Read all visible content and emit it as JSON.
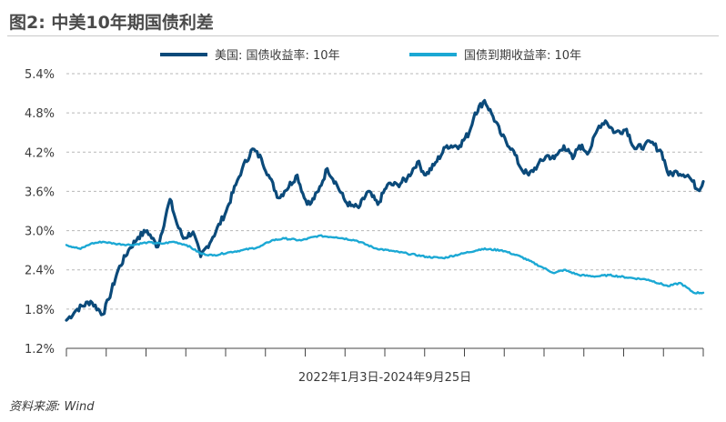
{
  "title": "图2: 中美10年期国债利差",
  "source": "资料来源: Wind",
  "colors": {
    "us": "#0b4a7a",
    "cn": "#1ba8d4",
    "grid": "#b7b7b7"
  },
  "chart_data": {
    "type": "line",
    "title": "图2: 中美10年期国债利差",
    "xlabel": "2022年1月3日-2024年9月25日",
    "ylabel": "",
    "x_range": [
      "2022-01-03",
      "2024-09-25"
    ],
    "ylim": [
      1.2,
      5.4
    ],
    "yticks": [
      "1.2%",
      "1.8%",
      "2.4%",
      "3.0%",
      "3.6%",
      "4.2%",
      "4.8%",
      "5.4%"
    ],
    "grid": "horizontal dashed",
    "legend_position": "top",
    "series": [
      {
        "name": "美国: 国债收益率: 10年",
        "color": "#0b4a7a",
        "x": [
          "2022-01-03",
          "2022-01-20",
          "2022-02-10",
          "2022-03-01",
          "2022-03-10",
          "2022-03-25",
          "2022-04-10",
          "2022-04-25",
          "2022-05-09",
          "2022-05-26",
          "2022-06-14",
          "2022-06-25",
          "2022-07-05",
          "2022-07-20",
          "2022-08-01",
          "2022-08-20",
          "2022-09-10",
          "2022-09-25",
          "2022-10-05",
          "2022-10-21",
          "2022-11-04",
          "2022-11-15",
          "2022-12-01",
          "2022-12-10",
          "2022-12-30",
          "2023-01-10",
          "2023-01-19",
          "2023-02-01",
          "2023-02-15",
          "2023-03-02",
          "2023-03-15",
          "2023-03-24",
          "2023-04-05",
          "2023-04-20",
          "2023-05-05",
          "2023-05-20",
          "2023-06-05",
          "2023-06-20",
          "2023-07-06",
          "2023-07-19",
          "2023-08-01",
          "2023-08-21",
          "2023-09-10",
          "2023-09-25",
          "2023-10-04",
          "2023-10-19",
          "2023-11-01",
          "2023-11-15",
          "2023-12-01",
          "2023-12-15",
          "2023-12-27",
          "2024-01-10",
          "2024-01-25",
          "2024-02-05",
          "2024-02-20",
          "2024-03-05",
          "2024-03-15",
          "2024-03-30",
          "2024-04-15",
          "2024-04-25",
          "2024-05-10",
          "2024-05-28",
          "2024-06-10",
          "2024-06-25",
          "2024-07-05",
          "2024-07-22",
          "2024-08-02",
          "2024-08-15",
          "2024-09-01",
          "2024-09-17",
          "2024-09-25"
        ],
        "y": [
          1.63,
          1.8,
          1.92,
          1.72,
          1.95,
          2.4,
          2.7,
          2.9,
          3.0,
          2.75,
          3.48,
          3.1,
          2.88,
          2.98,
          2.6,
          2.9,
          3.3,
          3.7,
          3.95,
          4.25,
          4.1,
          3.85,
          3.5,
          3.6,
          3.85,
          3.5,
          3.4,
          3.6,
          3.95,
          3.7,
          3.45,
          3.38,
          3.35,
          3.6,
          3.4,
          3.7,
          3.7,
          3.8,
          4.05,
          3.85,
          4.0,
          4.3,
          4.3,
          4.5,
          4.8,
          4.99,
          4.75,
          4.45,
          4.25,
          3.95,
          3.85,
          4.0,
          4.15,
          4.1,
          4.3,
          4.1,
          4.3,
          4.2,
          4.6,
          4.68,
          4.5,
          4.55,
          4.25,
          4.3,
          4.35,
          4.2,
          3.85,
          3.9,
          3.85,
          3.62,
          3.75
        ]
      },
      {
        "name": "国债到期收益率: 10年",
        "color": "#1ba8d4",
        "x": [
          "2022-01-03",
          "2022-01-25",
          "2022-02-10",
          "2022-03-01",
          "2022-03-20",
          "2022-04-15",
          "2022-05-10",
          "2022-06-01",
          "2022-06-20",
          "2022-07-10",
          "2022-08-01",
          "2022-08-20",
          "2022-09-15",
          "2022-10-05",
          "2022-11-01",
          "2022-11-20",
          "2022-12-10",
          "2023-01-05",
          "2023-02-01",
          "2023-03-01",
          "2023-04-01",
          "2023-05-01",
          "2023-06-01",
          "2023-06-20",
          "2023-07-20",
          "2023-08-15",
          "2023-09-15",
          "2023-10-15",
          "2023-11-15",
          "2023-12-15",
          "2024-01-15",
          "2024-02-05",
          "2024-02-20",
          "2024-03-15",
          "2024-04-10",
          "2024-05-01",
          "2024-06-01",
          "2024-07-01",
          "2024-08-01",
          "2024-08-20",
          "2024-09-10",
          "2024-09-25"
        ],
        "y": [
          2.78,
          2.72,
          2.8,
          2.83,
          2.8,
          2.78,
          2.82,
          2.8,
          2.83,
          2.78,
          2.65,
          2.62,
          2.67,
          2.7,
          2.75,
          2.85,
          2.88,
          2.85,
          2.92,
          2.9,
          2.85,
          2.73,
          2.68,
          2.65,
          2.6,
          2.58,
          2.65,
          2.72,
          2.7,
          2.6,
          2.45,
          2.35,
          2.4,
          2.32,
          2.3,
          2.32,
          2.28,
          2.25,
          2.15,
          2.2,
          2.05,
          2.05
        ]
      }
    ]
  }
}
